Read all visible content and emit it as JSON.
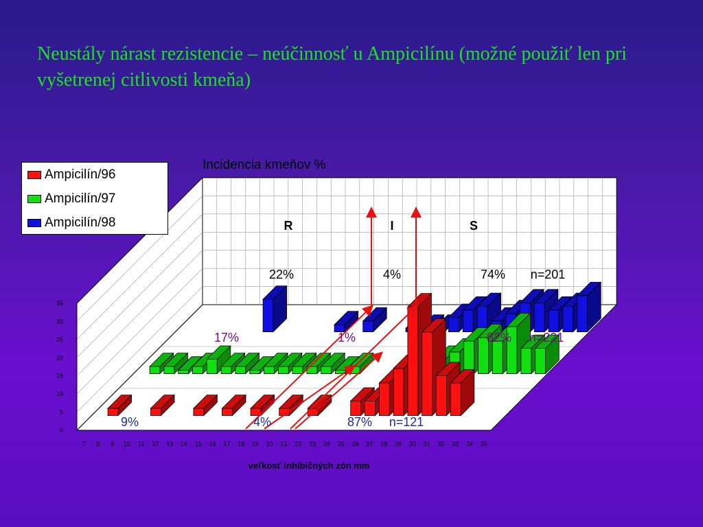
{
  "slide": {
    "title": "Neustály nárast rezistencie – neúčinnosť u Ampicilínu (možné použiť len pri vyšetrenej citlivosti kmeňa)"
  },
  "chart_data": {
    "type": "bar",
    "subtype": "3d-clustered-depth",
    "title": "Incidencia kmeňov %",
    "xlabel": "veľkosť inhibičných zón mm",
    "ylabel": "",
    "ylim": [
      0,
      35
    ],
    "yticks": [
      "0",
      "5",
      "10",
      "15",
      "20",
      "25",
      "30",
      "35"
    ],
    "categories": [
      "7",
      "8",
      "9",
      "10",
      "11",
      "12",
      "13",
      "14",
      "15",
      "16",
      "17",
      "18",
      "19",
      "20",
      "21",
      "22",
      "23",
      "24",
      "25",
      "26",
      "27",
      "28",
      "29",
      "30",
      "31",
      "32",
      "33",
      "34",
      "35"
    ],
    "legend": {
      "position": "top-left"
    },
    "grid": true,
    "colors": {
      "Ampicilín/96": "#ff1010",
      "Ampicilín/97": "#10e010",
      "Ampicilín/98": "#1010e0"
    },
    "series": [
      {
        "name": "Ampicilín/96",
        "values": [
          0,
          2,
          0,
          0,
          2,
          0,
          0,
          2,
          0,
          2,
          0,
          2,
          0,
          2,
          0,
          2,
          0,
          0,
          4,
          4,
          9,
          13,
          30,
          23,
          11,
          9,
          0,
          0,
          0
        ]
      },
      {
        "name": "Ampicilín/97",
        "values": [
          0,
          2,
          2,
          1,
          2,
          4,
          2,
          2,
          1,
          2,
          2,
          2,
          2,
          2,
          1,
          2,
          0,
          0,
          1,
          2,
          4,
          4,
          6,
          9,
          10,
          9,
          13,
          7,
          7
        ]
      },
      {
        "name": "Ampicilín/98",
        "values": [
          0,
          0,
          0,
          0,
          0,
          0,
          9,
          0,
          0,
          0,
          0,
          2,
          0,
          3,
          0,
          0,
          1,
          1,
          1,
          4,
          6,
          7,
          3,
          5,
          8,
          8,
          6,
          7,
          10
        ]
      }
    ],
    "annotations": {
      "zones": [
        "R",
        "I",
        "S"
      ],
      "row_98": [
        "22%",
        "4%",
        "74%",
        "n=201"
      ],
      "row_97": [
        "17%",
        "1%",
        "82%",
        "n=221"
      ],
      "row_96": [
        "9%",
        "4%",
        "87%",
        "n=121"
      ]
    }
  }
}
